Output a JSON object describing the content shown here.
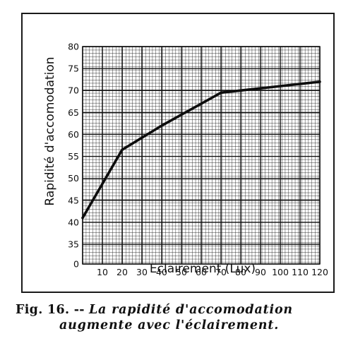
{
  "chart_data": {
    "type": "line",
    "xlabel": "Eclairement (Lux)",
    "ylabel": "Rapidité d'accomodation",
    "xlim": [
      0,
      120
    ],
    "ylim": [
      0,
      80
    ],
    "y_axis_break": true,
    "xticks": [
      10,
      20,
      30,
      40,
      50,
      60,
      70,
      80,
      90,
      100,
      110,
      120
    ],
    "yticks": [
      0,
      35,
      40,
      45,
      50,
      55,
      60,
      65,
      70,
      75,
      80
    ],
    "grid": true,
    "series": [
      {
        "x": [
          0,
          20,
          40,
          60,
          70,
          80,
          100,
          120
        ],
        "y": [
          41,
          56.5,
          62,
          67,
          69.5,
          70,
          71,
          72
        ]
      }
    ]
  },
  "caption": {
    "fig_label": "Fig. 16. --",
    "line1_text": "La rapidité d'accomodation",
    "line2_text": "augmente avec l'éclairement."
  }
}
